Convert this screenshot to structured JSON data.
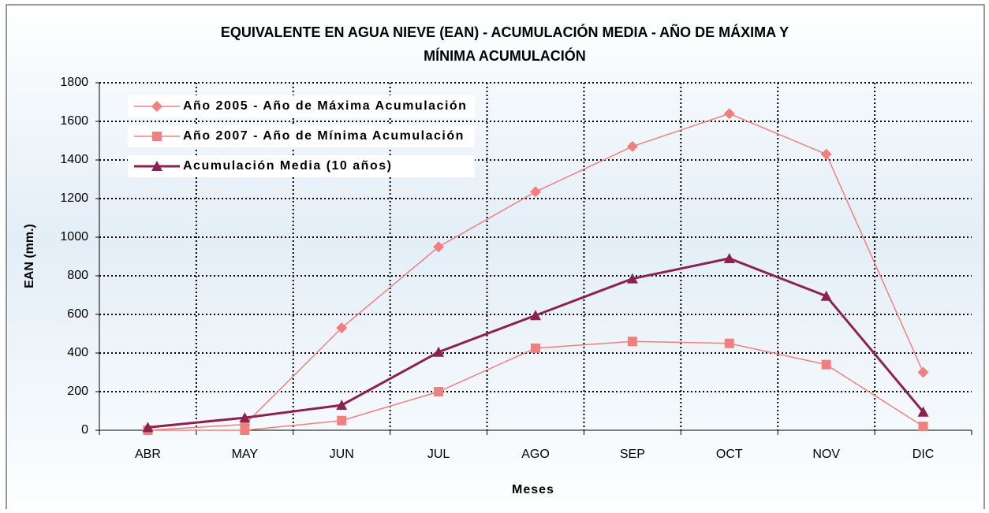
{
  "chart_data": {
    "type": "line",
    "title": [
      "EQUIVALENTE EN AGUA NIEVE (EAN) - ACUMULACIÓN MEDIA - AÑO DE MÁXIMA Y",
      "MÍNIMA ACUMULACIÓN"
    ],
    "xlabel": "Meses",
    "ylabel": "EAN (mm.)",
    "categories": [
      "ABR",
      "MAY",
      "JUN",
      "JUL",
      "AGO",
      "SEP",
      "OCT",
      "NOV",
      "DIC"
    ],
    "series": [
      {
        "name": "Año 2005 - Año de Máxima Acumulación",
        "color": "#f08080",
        "marker": "diamond",
        "width": 1.5,
        "values": [
          0,
          30,
          530,
          950,
          1235,
          1470,
          1640,
          1430,
          300
        ]
      },
      {
        "name": "Año 2007 - Año de Mínima Acumulación",
        "color": "#f08080",
        "marker": "square",
        "width": 1.5,
        "values": [
          0,
          0,
          50,
          200,
          425,
          460,
          450,
          340,
          20
        ]
      },
      {
        "name": "Acumulación Media (10 años)",
        "color": "#8b2252",
        "marker": "triangle",
        "width": 3,
        "values": [
          15,
          65,
          130,
          405,
          595,
          785,
          890,
          695,
          95
        ]
      }
    ],
    "ylim": [
      0,
      1800
    ],
    "yticks": [
      0,
      200,
      400,
      600,
      800,
      1000,
      1200,
      1400,
      1600,
      1800
    ],
    "grid": true,
    "legend": "upper left"
  }
}
